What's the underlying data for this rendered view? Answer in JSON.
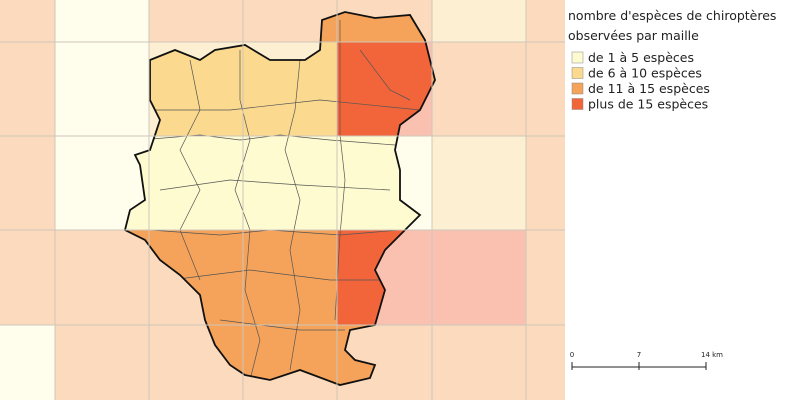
{
  "legend": {
    "title": [
      "nombre d'espèces de chiroptères",
      "observées par maille"
    ],
    "items": [
      {
        "label": "de 1 à 5 espèces",
        "color": "#fefbd0"
      },
      {
        "label": "de 6 à 10 espèces",
        "color": "#fbd98f"
      },
      {
        "label": "de 11 à 15 espèces",
        "color": "#f5a35a"
      },
      {
        "label": "plus de 15 espèces",
        "color": "#f2653a"
      }
    ]
  },
  "scale_bar": {
    "labels": [
      "0",
      "7",
      "14 km"
    ]
  }
}
